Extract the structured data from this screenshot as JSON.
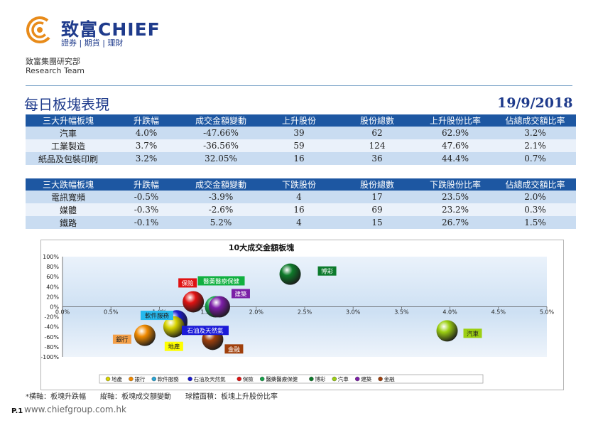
{
  "header": {
    "brand": "致富CHIEF",
    "tagline": "證券 | 期貨 | 理財",
    "department": "致富集團研究部",
    "team": "Research Team"
  },
  "page_title": "每日板塊表現",
  "date": "19/9/2018",
  "top_table": {
    "headers": [
      "三大升幅板塊",
      "升跌幅",
      "成交金額變動",
      "上升股份",
      "股份總數",
      "上升股份比率",
      "佔總成交額比率"
    ],
    "rows": [
      [
        "汽車",
        "4.0%",
        "-47.66%",
        "39",
        "62",
        "62.9%",
        "3.2%"
      ],
      [
        "工業製造",
        "3.7%",
        "-36.56%",
        "59",
        "124",
        "47.6%",
        "2.1%"
      ],
      [
        "紙品及包裝印刷",
        "3.2%",
        "32.05%",
        "16",
        "36",
        "44.4%",
        "0.7%"
      ]
    ]
  },
  "bottom_table": {
    "headers": [
      "三大跌幅板塊",
      "升跌幅",
      "成交金額變動",
      "下跌股份",
      "股份總數",
      "下跌股份比率",
      "佔總成交額比率"
    ],
    "rows": [
      [
        "電訊寬頻",
        "-0.5%",
        "-3.9%",
        "4",
        "17",
        "23.5%",
        "2.0%"
      ],
      [
        "媒體",
        "-0.3%",
        "-2.6%",
        "16",
        "69",
        "23.2%",
        "0.3%"
      ],
      [
        "鐵路",
        "-0.1%",
        "5.2%",
        "4",
        "15",
        "26.7%",
        "1.5%"
      ]
    ]
  },
  "chart_data": {
    "type": "scatter",
    "title": "10大成交金額板塊",
    "xlim": [
      0,
      5
    ],
    "ylim": [
      -100,
      100
    ],
    "x_ticks": [
      "0.0%",
      "0.5%",
      "1.0%",
      "1.5%",
      "2.0%",
      "2.5%",
      "3.0%",
      "3.5%",
      "4.0%",
      "4.5%",
      "5.0%"
    ],
    "y_ticks": [
      "100%",
      "80%",
      "60%",
      "40%",
      "20%",
      "0%",
      "-20%",
      "-40%",
      "-60%",
      "-80%",
      "-100%"
    ],
    "legend_position": "bottom",
    "series": [
      {
        "name": "地產",
        "x": 1.15,
        "y": -40,
        "color": "#d9d400",
        "label_color": "#ffff00"
      },
      {
        "name": "銀行",
        "x": 0.85,
        "y": -57,
        "color": "#f08a00",
        "label_color": "#f4a048"
      },
      {
        "name": "軟件服務",
        "x": 1.18,
        "y": -32,
        "color": "#2aa6d6",
        "label_color": "#26b9ee"
      },
      {
        "name": "石油及天然氣",
        "x": 1.18,
        "y": -28,
        "color": "#1b1bd0",
        "label_color": "#1a1ad8"
      },
      {
        "name": "保險",
        "x": 1.35,
        "y": 10,
        "color": "#e01212",
        "label_color": "#e01212"
      },
      {
        "name": "醫藥醫療保健",
        "x": 1.58,
        "y": 0,
        "color": "#16a24a",
        "label_color": "#10b040"
      },
      {
        "name": "博彩",
        "x": 2.35,
        "y": 65,
        "color": "#0e7a2a",
        "label_color": "#0c7a2c"
      },
      {
        "name": "汽車",
        "x": 3.97,
        "y": -48,
        "color": "#9ccf12",
        "label_color": "#9ccf12"
      },
      {
        "name": "建築",
        "x": 1.62,
        "y": 0,
        "color": "#7d1ea8",
        "label_color": "#7a1fa6"
      },
      {
        "name": "金融",
        "x": 1.55,
        "y": -65,
        "color": "#a0400c",
        "label_color": "#a0400c"
      }
    ]
  },
  "footnote": "*橫軸：板塊升跌幅　　縱軸：板塊成交額變動　　球體面積：板塊上升股份比率",
  "page_number": "P.1",
  "website": "www.chiefgroup.com.hk"
}
